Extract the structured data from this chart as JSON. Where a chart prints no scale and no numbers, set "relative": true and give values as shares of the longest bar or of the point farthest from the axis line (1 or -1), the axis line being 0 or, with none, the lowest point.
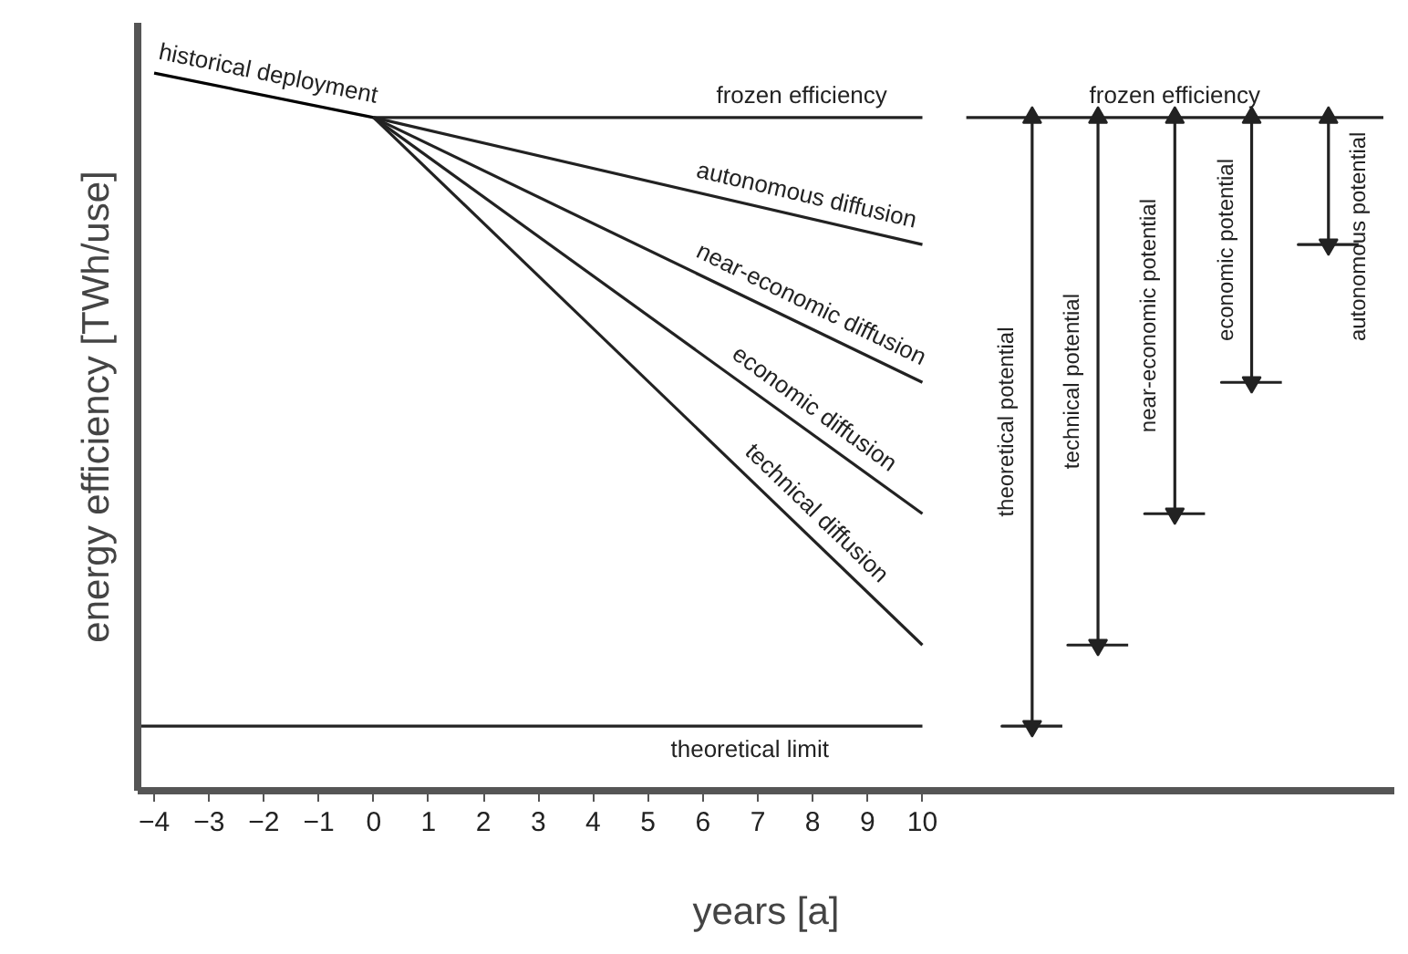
{
  "chart_data": {
    "type": "line",
    "relative": true,
    "xlabel": "years [a]",
    "ylabel": "energy efficiency [TWh/use]",
    "xlim": [
      -4.3,
      18.6
    ],
    "xticks": [
      -4,
      -3,
      -2,
      -1,
      0,
      1,
      2,
      3,
      4,
      5,
      6,
      7,
      8,
      9,
      10
    ],
    "grid": false,
    "line_style": "solid",
    "marker": "none",
    "series": [
      {
        "name": "historical deployment",
        "color": "#000000",
        "x": [
          -4,
          0
        ],
        "values": [
          1.0,
          0.938
        ]
      },
      {
        "name": "frozen efficiency",
        "color": "#222222",
        "x": [
          0,
          10
        ],
        "values": [
          0.938,
          0.938
        ]
      },
      {
        "name": "autonomous diffusion",
        "color": "#222222",
        "x": [
          0,
          10
        ],
        "values": [
          0.938,
          0.761
        ]
      },
      {
        "name": "near-economic diffusion",
        "color": "#222222",
        "x": [
          0,
          10
        ],
        "values": [
          0.938,
          0.569
        ]
      },
      {
        "name": "economic diffusion",
        "color": "#222222",
        "x": [
          0,
          10
        ],
        "values": [
          0.938,
          0.386
        ]
      },
      {
        "name": "technical diffusion",
        "color": "#222222",
        "x": [
          0,
          10
        ],
        "values": [
          0.938,
          0.203
        ]
      },
      {
        "name": "theoretical limit",
        "color": "#222222",
        "x": [
          -4.3,
          10
        ],
        "values": [
          0.09,
          0.09
        ]
      },
      {
        "name": "frozen efficiency",
        "color": "#222222",
        "x": [
          10.8,
          18.4
        ],
        "values": [
          0.938,
          0.938
        ]
      },
      {
        "color": "#222222",
        "marker": "triangle",
        "x": [
          12.0,
          12.0,
          11.45,
          12.55
        ],
        "values": [
          0.938,
          0.09,
          0.09,
          0.09
        ]
      },
      {
        "color": "#222222",
        "marker": "triangle",
        "x": [
          13.2,
          13.2,
          12.65,
          13.75
        ],
        "values": [
          0.938,
          0.203,
          0.203,
          0.203
        ]
      },
      {
        "color": "#222222",
        "marker": "triangle",
        "x": [
          14.6,
          14.6,
          14.05,
          15.15
        ],
        "values": [
          0.938,
          0.386,
          0.386,
          0.386
        ]
      },
      {
        "color": "#222222",
        "marker": "triangle",
        "x": [
          16.0,
          16.0,
          15.45,
          16.55
        ],
        "values": [
          0.938,
          0.569,
          0.569,
          0.569
        ]
      },
      {
        "color": "#222222",
        "marker": "triangle",
        "x": [
          17.4,
          17.4,
          16.85,
          17.95
        ],
        "values": [
          0.938,
          0.761,
          0.761,
          0.761
        ]
      }
    ],
    "annotations": [
      "theoretical potential",
      "technical potential",
      "near-economic potential",
      "economic potential",
      "autonomous potential"
    ]
  }
}
